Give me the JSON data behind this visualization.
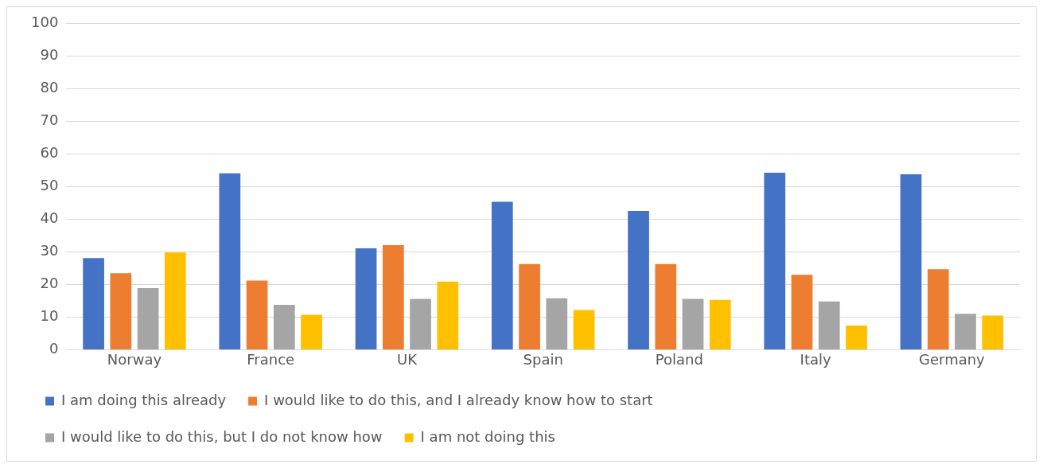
{
  "chart_data": {
    "type": "bar",
    "categories": [
      "Norway",
      "France",
      "UK",
      "Spain",
      "Poland",
      "Italy",
      "Germany"
    ],
    "series": [
      {
        "name": "I am doing this already",
        "color": "#4472c4",
        "values": [
          28.1,
          54.1,
          31.1,
          45.4,
          42.6,
          54.3,
          53.8
        ]
      },
      {
        "name": "I would like to do this, and I already know how to start",
        "color": "#ed7d31",
        "values": [
          23.5,
          21.2,
          32.1,
          26.3,
          26.3,
          23,
          24.7
        ]
      },
      {
        "name": "I would like to do this, but I do not know how",
        "color": "#a5a5a5",
        "values": [
          18.9,
          13.8,
          15.6,
          15.8,
          15.6,
          14.8,
          11
        ]
      },
      {
        "name": "I am not doing this",
        "color": "#ffc000",
        "values": [
          29.8,
          10.7,
          20.9,
          12.2,
          15.3,
          7.4,
          10.5
        ]
      }
    ],
    "ylim": [
      0,
      100
    ],
    "yticks": [
      0,
      10,
      20,
      30,
      40,
      50,
      60,
      70,
      80,
      90,
      100
    ],
    "grid": "y",
    "legend": "bottom"
  }
}
